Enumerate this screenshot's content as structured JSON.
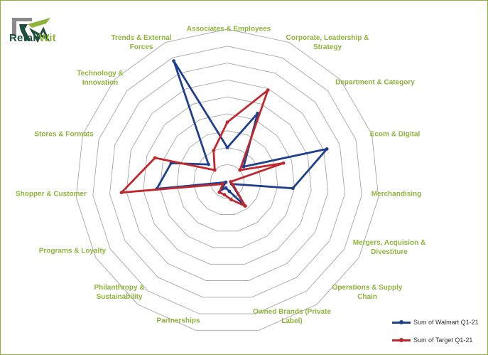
{
  "logo": {
    "text_a": "Retail",
    "text_b": "Wit"
  },
  "colors": {
    "walmart": "#1f3f8f",
    "target": "#c0282d",
    "label": "#8db33a",
    "grid": "#a6a6a6"
  },
  "chart_data": {
    "type": "radar",
    "categories": [
      "Associates & Employees",
      "Corporate, Leadership & Strategy",
      "Department & Category",
      "Ecom & Digital",
      "Merchandising",
      "Mergers, Acquision & Divestiture",
      "Operations & Supply Chain",
      "Owned Brands (Private Label)",
      "Partnerships",
      "Philanthropy & Sustainability",
      "Programs & Loyalty",
      "Shopper & Customer",
      "Stores & Formats",
      "Technology & Innovation",
      "Trends & External Forces"
    ],
    "series": [
      {
        "name": "Sum of Walmart Q1-21",
        "values": [
          2.0,
          4.4,
          1.3,
          6.2,
          3.9,
          0.3,
          1.8,
          0.6,
          0.4,
          0.6,
          0.1,
          4.2,
          3.5,
          1.5,
          7.8
        ]
      },
      {
        "name": "Sum of Target Q1-21",
        "values": [
          3.5,
          5.9,
          1.0,
          3.5,
          0.2,
          0.4,
          1.8,
          1.1,
          0.8,
          0.8,
          0.3,
          6.3,
          4.5,
          1.0,
          2.0
        ]
      }
    ],
    "rlim": [
      0,
      9
    ],
    "rings": 9,
    "grid": true,
    "legend": "bottom-right"
  }
}
